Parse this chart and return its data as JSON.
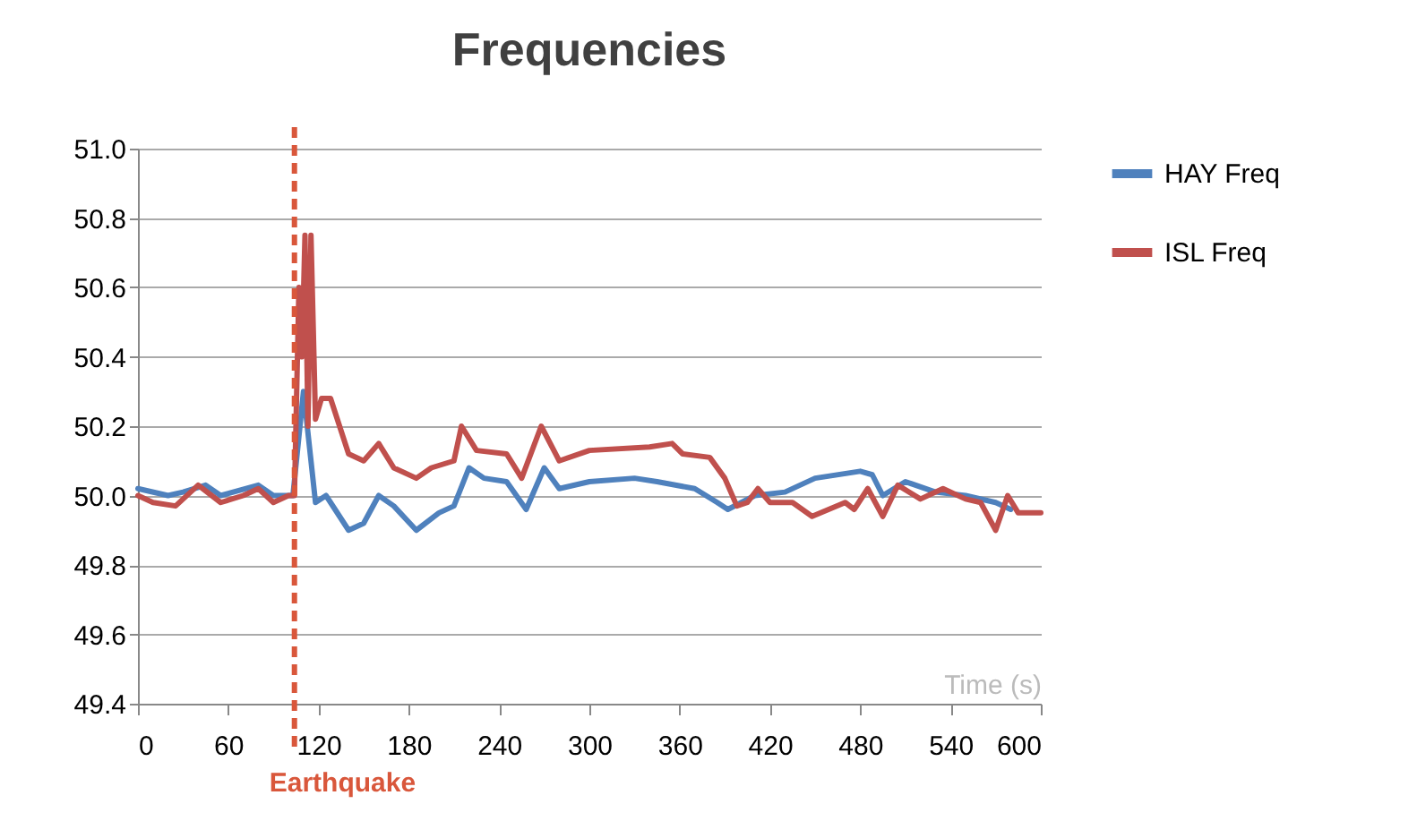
{
  "chart_data": {
    "type": "line",
    "title": "Frequencies",
    "xlabel": "Time (s)",
    "xlim": [
      0,
      600
    ],
    "xticks": [
      0,
      60,
      120,
      180,
      240,
      300,
      360,
      420,
      480,
      540,
      600
    ],
    "ylim": [
      49.4,
      51.0
    ],
    "yticks": [
      {
        "value": 49.4,
        "label": "49.4"
      },
      {
        "value": 49.6,
        "label": "49.6"
      },
      {
        "value": 49.8,
        "label": "49.8"
      },
      {
        "value": 50,
        "label": "50.0"
      },
      {
        "value": 50.2,
        "label": "50.2"
      },
      {
        "value": 50.4,
        "label": "50.4"
      },
      {
        "value": 50.6,
        "label": "50.6"
      },
      {
        "value": 50.8,
        "label": "50.8"
      },
      {
        "value": 51,
        "label": "51.0"
      }
    ],
    "grid": "y",
    "legend": "right",
    "line_style": "solid",
    "marker": "none",
    "series": [
      {
        "name": "HAY Freq",
        "color": "#4f81bd",
        "x": [
          0,
          20,
          30,
          45,
          55,
          80,
          90,
          103,
          110,
          118,
          125,
          140,
          150,
          160,
          170,
          185,
          200,
          210,
          220,
          230,
          245,
          258,
          270,
          280,
          300,
          330,
          345,
          370,
          385,
          392,
          410,
          430,
          450,
          480,
          488,
          495,
          510,
          530,
          550,
          570,
          580
        ],
        "values": [
          50.02,
          50.0,
          50.01,
          50.03,
          50.0,
          50.03,
          50.0,
          50.0,
          50.3,
          49.98,
          50.0,
          49.9,
          49.92,
          50.0,
          49.97,
          49.9,
          49.95,
          49.97,
          50.08,
          50.05,
          50.04,
          49.96,
          50.08,
          50.02,
          50.04,
          50.05,
          50.04,
          50.02,
          49.98,
          49.96,
          50.0,
          50.01,
          50.05,
          50.07,
          50.06,
          50.0,
          50.04,
          50.01,
          50.0,
          49.98,
          49.96
        ]
      },
      {
        "name": "ISL Freq",
        "color": "#c0504d",
        "x": [
          0,
          10,
          25,
          40,
          55,
          70,
          80,
          90,
          100,
          104,
          107,
          109,
          111,
          113,
          115,
          118,
          122,
          128,
          140,
          150,
          160,
          170,
          185,
          195,
          210,
          215,
          225,
          245,
          255,
          268,
          280,
          300,
          340,
          355,
          362,
          380,
          390,
          398,
          405,
          412,
          420,
          435,
          448,
          470,
          476,
          485,
          495,
          505,
          520,
          535,
          550,
          560,
          570,
          578,
          585,
          600
        ],
        "values": [
          50.0,
          49.98,
          49.97,
          50.03,
          49.98,
          50.0,
          50.02,
          49.98,
          50.0,
          50.0,
          50.6,
          50.4,
          50.75,
          50.2,
          50.75,
          50.22,
          50.28,
          50.28,
          50.12,
          50.1,
          50.15,
          50.08,
          50.05,
          50.08,
          50.1,
          50.2,
          50.13,
          50.12,
          50.05,
          50.2,
          50.1,
          50.13,
          50.14,
          50.15,
          50.12,
          50.11,
          50.05,
          49.97,
          49.98,
          50.02,
          49.98,
          49.98,
          49.94,
          49.98,
          49.96,
          50.02,
          49.94,
          50.03,
          49.99,
          50.02,
          49.99,
          49.98,
          49.9,
          50.0,
          49.95,
          49.95
        ]
      }
    ],
    "ref_lines": [
      {
        "axis": "x",
        "value": 104,
        "label": "Earthquake",
        "color": "#d9573b",
        "line_style": "dashed"
      }
    ]
  }
}
